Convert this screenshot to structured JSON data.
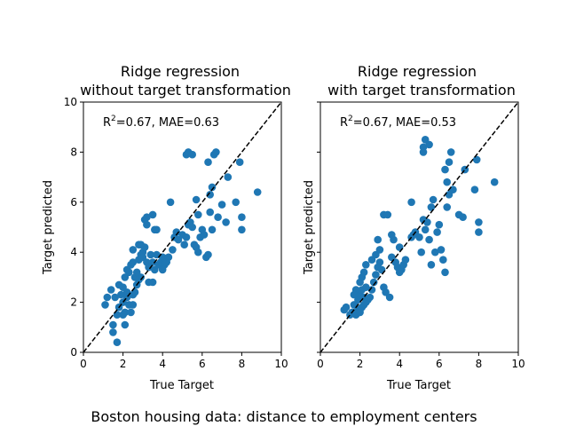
{
  "suptitle": "Boston housing data: distance to employment centers",
  "chart_data": [
    {
      "type": "scatter",
      "title_line1": "Ridge regression",
      "title_line2": "without target transformation",
      "annotation_r2": "=0.67, MAE=0.63",
      "xlabel": "True Target",
      "ylabel": "Target predicted",
      "xlim": [
        0,
        10
      ],
      "ylim": [
        0,
        10
      ],
      "xticks": [
        "0",
        "2",
        "4",
        "6",
        "8",
        "10"
      ],
      "yticks": [
        "0",
        "2",
        "4",
        "6",
        "8",
        "10"
      ],
      "show_ytick_labels": true,
      "reference_line": "y = x (dashed)",
      "marker_color": "#1f77b4",
      "points": [
        [
          1.7,
          0.4
        ],
        [
          1.5,
          0.8
        ],
        [
          1.5,
          1.1
        ],
        [
          2.1,
          1.1
        ],
        [
          1.2,
          2.2
        ],
        [
          1.1,
          1.9
        ],
        [
          1.4,
          2.5
        ],
        [
          1.6,
          2.2
        ],
        [
          1.8,
          2.7
        ],
        [
          1.9,
          2.3
        ],
        [
          2.0,
          2.6
        ],
        [
          2.2,
          2.4
        ],
        [
          2.1,
          1.6
        ],
        [
          2.3,
          1.9
        ],
        [
          2.4,
          1.6
        ],
        [
          2.5,
          1.9
        ],
        [
          1.8,
          1.8
        ],
        [
          2.0,
          2.0
        ],
        [
          2.2,
          2.2
        ],
        [
          1.7,
          1.5
        ],
        [
          2.0,
          1.5
        ],
        [
          2.5,
          2.3
        ],
        [
          2.6,
          2.4
        ],
        [
          2.7,
          2.7
        ],
        [
          2.8,
          2.9
        ],
        [
          2.9,
          3.0
        ],
        [
          2.1,
          3.0
        ],
        [
          2.2,
          3.3
        ],
        [
          2.3,
          3.2
        ],
        [
          2.4,
          3.5
        ],
        [
          2.5,
          3.6
        ],
        [
          2.6,
          3.0
        ],
        [
          2.7,
          3.2
        ],
        [
          2.8,
          3.7
        ],
        [
          2.9,
          3.9
        ],
        [
          3.0,
          4.0
        ],
        [
          3.1,
          4.2
        ],
        [
          2.5,
          4.1
        ],
        [
          2.8,
          4.3
        ],
        [
          2.9,
          4.3
        ],
        [
          3.0,
          3.8
        ],
        [
          3.2,
          3.6
        ],
        [
          3.3,
          3.4
        ],
        [
          3.4,
          3.9
        ],
        [
          3.5,
          3.6
        ],
        [
          3.6,
          3.3
        ],
        [
          3.7,
          3.9
        ],
        [
          3.8,
          3.5
        ],
        [
          3.9,
          3.6
        ],
        [
          4.0,
          3.8
        ],
        [
          4.1,
          3.5
        ],
        [
          4.2,
          3.6
        ],
        [
          3.3,
          2.8
        ],
        [
          3.5,
          2.8
        ],
        [
          3.6,
          4.9
        ],
        [
          3.2,
          5.1
        ],
        [
          3.1,
          5.3
        ],
        [
          3.2,
          5.4
        ],
        [
          3.5,
          5.5
        ],
        [
          3.7,
          4.9
        ],
        [
          4.0,
          3.3
        ],
        [
          4.3,
          3.8
        ],
        [
          4.5,
          4.1
        ],
        [
          4.6,
          4.6
        ],
        [
          4.7,
          4.8
        ],
        [
          4.4,
          6.0
        ],
        [
          4.8,
          4.5
        ],
        [
          5.0,
          4.7
        ],
        [
          5.1,
          4.3
        ],
        [
          5.2,
          4.6
        ],
        [
          5.3,
          5.1
        ],
        [
          5.4,
          5.2
        ],
        [
          5.5,
          5.0
        ],
        [
          5.6,
          4.3
        ],
        [
          5.7,
          4.2
        ],
        [
          5.8,
          4.0
        ],
        [
          5.9,
          4.6
        ],
        [
          5.2,
          7.9
        ],
        [
          5.3,
          8.0
        ],
        [
          5.5,
          7.9
        ],
        [
          5.7,
          6.1
        ],
        [
          5.8,
          5.5
        ],
        [
          6.0,
          4.9
        ],
        [
          6.1,
          4.7
        ],
        [
          6.2,
          3.8
        ],
        [
          6.3,
          3.9
        ],
        [
          6.4,
          5.6
        ],
        [
          6.5,
          6.6
        ],
        [
          6.6,
          7.9
        ],
        [
          6.7,
          8.0
        ],
        [
          6.3,
          7.6
        ],
        [
          6.4,
          6.3
        ],
        [
          6.8,
          5.4
        ],
        [
          6.5,
          4.9
        ],
        [
          7.0,
          5.9
        ],
        [
          7.2,
          5.2
        ],
        [
          7.3,
          7.0
        ],
        [
          7.7,
          6.0
        ],
        [
          7.9,
          7.6
        ],
        [
          8.0,
          5.4
        ],
        [
          8.0,
          4.9
        ],
        [
          8.8,
          6.4
        ]
      ]
    },
    {
      "type": "scatter",
      "title_line1": "Ridge regression",
      "title_line2": "with target transformation",
      "annotation_r2": "=0.67, MAE=0.53",
      "xlabel": "True Target",
      "ylabel": "Target predicted",
      "xlim": [
        0,
        10
      ],
      "ylim": [
        0,
        10
      ],
      "xticks": [
        "0",
        "2",
        "4",
        "6",
        "8",
        "10"
      ],
      "yticks": [
        "0",
        "2",
        "4",
        "6",
        "8",
        "10"
      ],
      "show_ytick_labels": false,
      "reference_line": "y = x (dashed)",
      "marker_color": "#1f77b4",
      "points": [
        [
          1.2,
          1.7
        ],
        [
          1.3,
          1.8
        ],
        [
          1.5,
          1.5
        ],
        [
          1.6,
          1.6
        ],
        [
          1.7,
          1.9
        ],
        [
          1.8,
          1.5
        ],
        [
          1.9,
          1.7
        ],
        [
          2.0,
          1.6
        ],
        [
          2.1,
          1.8
        ],
        [
          2.2,
          1.9
        ],
        [
          2.3,
          2.0
        ],
        [
          2.4,
          2.1
        ],
        [
          1.9,
          2.1
        ],
        [
          2.0,
          2.3
        ],
        [
          2.1,
          2.5
        ],
        [
          2.2,
          2.2
        ],
        [
          2.3,
          2.6
        ],
        [
          1.8,
          2.5
        ],
        [
          1.7,
          2.3
        ],
        [
          2.0,
          2.8
        ],
        [
          2.1,
          3.0
        ],
        [
          2.2,
          3.2
        ],
        [
          2.3,
          3.5
        ],
        [
          2.5,
          2.2
        ],
        [
          2.6,
          2.5
        ],
        [
          2.7,
          2.8
        ],
        [
          2.8,
          3.1
        ],
        [
          2.9,
          3.4
        ],
        [
          3.0,
          3.6
        ],
        [
          2.6,
          3.7
        ],
        [
          2.8,
          3.9
        ],
        [
          2.9,
          4.5
        ],
        [
          3.0,
          4.1
        ],
        [
          3.1,
          3.3
        ],
        [
          3.2,
          2.6
        ],
        [
          3.3,
          2.4
        ],
        [
          3.5,
          2.2
        ],
        [
          3.6,
          3.8
        ],
        [
          3.7,
          4.5
        ],
        [
          3.8,
          3.6
        ],
        [
          3.9,
          3.4
        ],
        [
          4.0,
          3.2
        ],
        [
          4.1,
          3.3
        ],
        [
          4.2,
          3.5
        ],
        [
          4.3,
          3.7
        ],
        [
          3.2,
          5.5
        ],
        [
          3.4,
          5.5
        ],
        [
          3.6,
          4.7
        ],
        [
          4.0,
          4.2
        ],
        [
          4.6,
          4.6
        ],
        [
          4.7,
          4.7
        ],
        [
          4.8,
          4.8
        ],
        [
          5.0,
          4.6
        ],
        [
          5.1,
          4.0
        ],
        [
          5.2,
          5.3
        ],
        [
          5.3,
          4.9
        ],
        [
          5.4,
          5.2
        ],
        [
          5.5,
          4.5
        ],
        [
          5.6,
          3.5
        ],
        [
          4.6,
          6.0
        ],
        [
          5.2,
          8.0
        ],
        [
          5.2,
          8.2
        ],
        [
          5.3,
          8.5
        ],
        [
          5.5,
          8.3
        ],
        [
          5.6,
          5.8
        ],
        [
          5.7,
          6.1
        ],
        [
          5.8,
          4.0
        ],
        [
          5.9,
          4.8
        ],
        [
          6.0,
          5.1
        ],
        [
          6.1,
          4.1
        ],
        [
          6.2,
          3.7
        ],
        [
          6.3,
          3.2
        ],
        [
          6.4,
          5.8
        ],
        [
          6.5,
          6.3
        ],
        [
          6.6,
          8.0
        ],
        [
          6.5,
          7.6
        ],
        [
          6.7,
          6.5
        ],
        [
          6.3,
          7.3
        ],
        [
          6.4,
          6.8
        ],
        [
          7.0,
          5.5
        ],
        [
          7.2,
          5.4
        ],
        [
          7.3,
          7.3
        ],
        [
          7.8,
          6.5
        ],
        [
          7.9,
          7.7
        ],
        [
          8.0,
          5.2
        ],
        [
          8.0,
          4.8
        ],
        [
          8.8,
          6.8
        ]
      ]
    }
  ]
}
